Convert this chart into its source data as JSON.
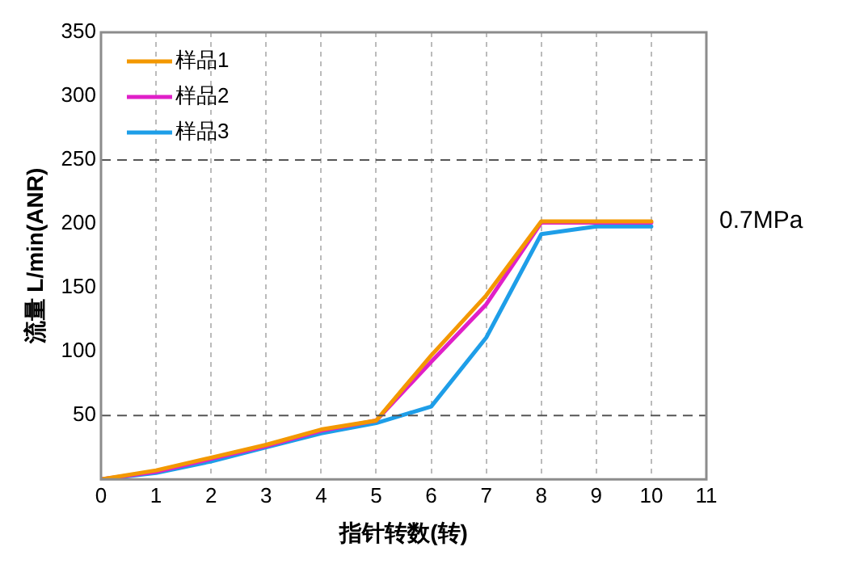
{
  "chart_data": {
    "type": "line",
    "xlabel": "指针转数(转)",
    "ylabel": "流量 L/min(ANR)",
    "x": [
      0,
      1,
      2,
      3,
      4,
      5,
      6,
      7,
      8,
      9,
      10
    ],
    "series": [
      {
        "name": "样品1",
        "color": "#f39800",
        "values": [
          0,
          7,
          17,
          27,
          39,
          46,
          97,
          144,
          202,
          202,
          202
        ]
      },
      {
        "name": "样品2",
        "color": "#e020c8",
        "values": [
          0,
          6,
          16,
          26,
          38,
          46,
          92,
          137,
          201,
          201,
          201
        ]
      },
      {
        "name": "样品3",
        "color": "#1e9ee8",
        "values": [
          0,
          5,
          14,
          25,
          36,
          44,
          57,
          111,
          192,
          198,
          198
        ]
      }
    ],
    "xlim": [
      0,
      11
    ],
    "xticks": [
      0,
      1,
      2,
      3,
      4,
      5,
      6,
      7,
      8,
      9,
      10,
      11
    ],
    "ylim": [
      0,
      350
    ],
    "yticks": [
      50,
      100,
      150,
      200,
      250,
      300,
      350
    ],
    "grid": "x",
    "legend": "top left",
    "marker": "none",
    "line_style": "solid",
    "ref_lines": [
      {
        "axis": "y",
        "value": 50,
        "color": "#555555",
        "line_style": "dashed"
      },
      {
        "axis": "y",
        "value": 250,
        "color": "#555555",
        "line_style": "dashed"
      }
    ],
    "annotations": [
      "0.7MPa"
    ]
  }
}
